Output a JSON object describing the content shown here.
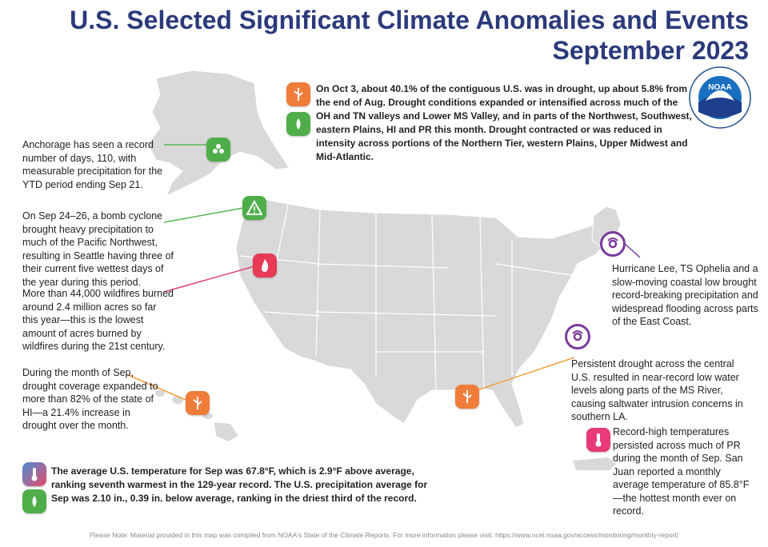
{
  "title": {
    "line1": "U.S. Selected Significant Climate Anomalies and Events",
    "line2": "September 2023"
  },
  "colors": {
    "title": "#2b3a7a",
    "map_land": "#d9d9d9",
    "drought_orange": "#f07c3a",
    "precip_green": "#4fae4a",
    "wildfire_red": "#e63a55",
    "hurricane_purple": "#7a3a9a",
    "leader_green": "#5ab552",
    "leader_pink": "#e0447a",
    "leader_orange": "#f0a040"
  },
  "logo": {
    "text": "NOAA",
    "ring_text": "NATIONAL OCEANIC AND ATMOSPHERIC ADMINISTRATION · U.S. DEPARTMENT OF COMMERCE"
  },
  "notes": {
    "drought_summary": "On Oct 3, about 40.1% of the contiguous U.S. was in drought, up about 5.8% from the end of Aug. Drought conditions expanded or intensified across much of the OH and TN valleys and Lower MS Valley, and in parts of the Northwest, Southwest, eastern Plains, HI and PR this month. Drought contracted or was reduced in intensity across portions of the Northern Tier, western Plains, Upper Midwest and Mid-Atlantic.",
    "anchorage": "Anchorage has seen a record number of days, 110, with measurable precipitation for the YTD period ending Sep 21.",
    "bomb_cyclone": "On Sep 24–26, a bomb cyclone brought heavy precipitation to much of the Pacific Northwest, resulting in Seattle having three of their current five wettest days of the year during this period.",
    "wildfires": "More than 44,000 wildfires burned around 2.4 million acres so far this year—this is the lowest amount of acres burned by wildfires during the 21st century.",
    "hawaii": "During the month of Sep, drought coverage expanded to more than 82% of the state of HI—a 21.4% increase in drought over the month.",
    "hurricane_lee": "Hurricane Lee, TS Ophelia and a slow-moving coastal low brought record-breaking precipitation and widespread flooding across parts of the East Coast.",
    "ms_river": "Persistent drought across the central U.S. resulted in near-record low water levels along parts of the MS River, causing saltwater intrusion concerns in southern LA.",
    "puerto_rico": "Record-high temperatures persisted across much of PR during the month of Sep. San Juan reported a monthly average temperature of 85.8°F—the hottest month ever on record.",
    "national": "The average U.S. temperature for Sep was 67.8°F, which is 2.9°F above average, ranking seventh warmest in the 129-year record. The U.S. precipitation average for Sep was 2.10 in., 0.39 in. below average, ranking in the driest third of the record."
  },
  "footer": "Please Note: Material provided in this map was compiled from NOAA's State of the Climate Reports. For more information please visit: https://www.ncei.noaa.gov/access/monitoring/monthly-report/"
}
